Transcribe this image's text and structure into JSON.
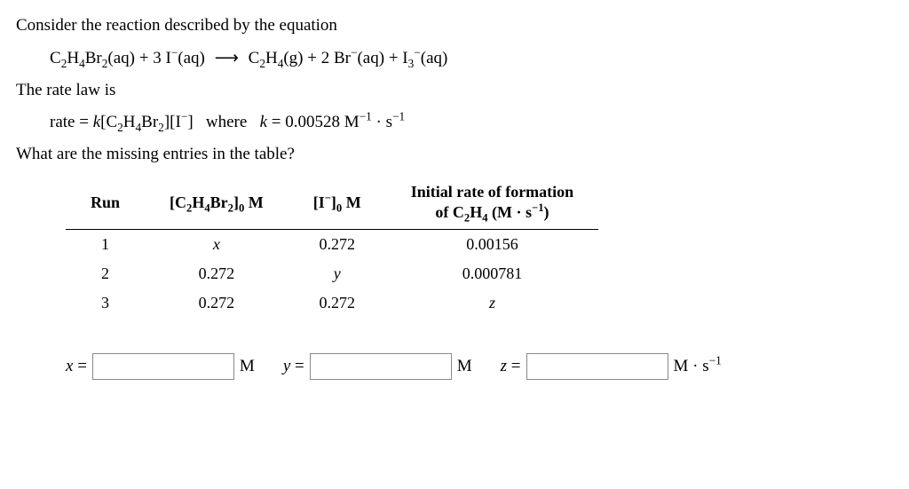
{
  "intro": "Consider the reaction described by the equation",
  "equation_html": "C<span class='sub'>2</span>H<span class='sub'>4</span>Br<span class='sub'>2</span>(aq) + 3 I<span class='sup'>−</span>(aq) <span class='arrow'>⟶</span> C<span class='sub'>2</span>H<span class='sub'>4</span>(g) + 2 Br<span class='sup'>−</span>(aq) + I<span class='sub'>3</span><span class='sup'>−</span>(aq)",
  "ratelaw_intro": "The rate law is",
  "ratelaw_html": "rate = <span class='it'>k</span>[C<span class='sub'>2</span>H<span class='sub'>4</span>Br<span class='sub'>2</span>][I<span class='sup'>−</span>]&nbsp;&nbsp;&nbsp;where&nbsp;&nbsp;&nbsp;<span class='it'>k</span> = 0.00528 M<span class='sup'>−1</span> · s<span class='sup'>−1</span>",
  "question": "What are the missing entries in the table?",
  "table": {
    "headers": {
      "run": "Run",
      "c2h4br2_html": "[C<span class='sub'>2</span>H<span class='sub'>4</span>Br<span class='sub'>2</span>]<span class='sub'>0</span> M",
      "i_html": "[I<span class='sup'>−</span>]<span class='sub'>0</span> M",
      "rate_html": "Initial rate of formation<br>of C<span class='sub'>2</span>H<span class='sub'>4</span> (M · s<span class='sup'>−1</span>)"
    },
    "rows": [
      {
        "run": "1",
        "c": "<span class='it'>x</span>",
        "i": "0.272",
        "rate": "0.00156"
      },
      {
        "run": "2",
        "c": "0.272",
        "i": "<span class='it'>y</span>",
        "rate": "0.000781"
      },
      {
        "run": "3",
        "c": "0.272",
        "i": "0.272",
        "rate": "<span class='it'>z</span>"
      }
    ]
  },
  "answers": {
    "x_label_html": "<span class='it'>x</span> =",
    "x_unit": "M",
    "y_label_html": "<span class='it'>y</span> =",
    "y_unit": "M",
    "z_label_html": "<span class='it'>z</span> =",
    "z_unit_html": "M · s<span class='sup'>−1</span>"
  }
}
